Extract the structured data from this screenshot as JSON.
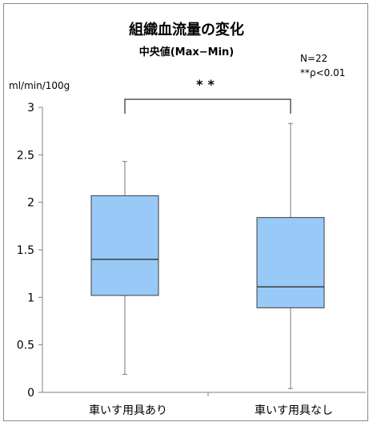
{
  "chart_data": {
    "type": "box",
    "title": "組織血流量の変化",
    "subtitle": "中央値(Max−Min)",
    "ylabel": "ml/min/100g",
    "ylim": [
      0,
      3
    ],
    "yticks": [
      0,
      0.5,
      1,
      1.5,
      2,
      2.5,
      3
    ],
    "ytick_labels": [
      "0",
      "0.5",
      "1",
      "1.5",
      "2",
      "2.5",
      "3"
    ],
    "annotations": {
      "n": "N=22",
      "p_value": "**ρ<0.01",
      "significance": "**"
    },
    "categories": [
      "車いす用具あり",
      "車いす用具なし"
    ],
    "boxes": [
      {
        "category": "車いす用具あり",
        "min": 0.19,
        "q1": 1.02,
        "median": 1.4,
        "q3": 2.07,
        "max": 2.43
      },
      {
        "category": "車いす用具なし",
        "min": 0.04,
        "q1": 0.89,
        "median": 1.11,
        "q3": 1.84,
        "max": 2.83
      }
    ],
    "box_color": "#99c9f7",
    "box_edge_color": "#3d3d3d",
    "grid": false,
    "legend": "none"
  }
}
